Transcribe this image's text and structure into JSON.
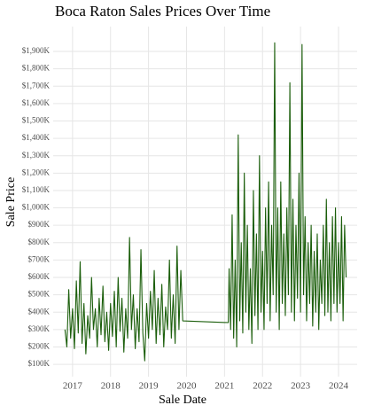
{
  "chart_data": {
    "type": "line",
    "title": "Boca Raton Sales Prices Over Time",
    "x_label": "Sale Date",
    "y_label": "Sale Price",
    "grid": true,
    "xlim": [
      2016.49,
      2024.49
    ],
    "xticks": [
      2017,
      2018,
      2019,
      2020,
      2021,
      2022,
      2023,
      2024
    ],
    "ylim": [
      29000,
      2043000
    ],
    "yticks": [
      {
        "value": 100000,
        "label": "$100K"
      },
      {
        "value": 200000,
        "label": "$200K"
      },
      {
        "value": 300000,
        "label": "$300K"
      },
      {
        "value": 400000,
        "label": "$400K"
      },
      {
        "value": 500000,
        "label": "$500K"
      },
      {
        "value": 600000,
        "label": "$600K"
      },
      {
        "value": 700000,
        "label": "$700K"
      },
      {
        "value": 800000,
        "label": "$800K"
      },
      {
        "value": 900000,
        "label": "$900K"
      },
      {
        "value": 1000000,
        "label": "$1,000K"
      },
      {
        "value": 1100000,
        "label": "$1,100K"
      },
      {
        "value": 1200000,
        "label": "$1,200K"
      },
      {
        "value": 1300000,
        "label": "$1,300K"
      },
      {
        "value": 1400000,
        "label": "$1,400K"
      },
      {
        "value": 1500000,
        "label": "$1,500K"
      },
      {
        "value": 1600000,
        "label": "$1,600K"
      },
      {
        "value": 1700000,
        "label": "$1,700K"
      },
      {
        "value": 1800000,
        "label": "$1,800K"
      },
      {
        "value": 1900000,
        "label": "$1,900K"
      }
    ],
    "series": [
      {
        "color": "#1b5e0b",
        "x": [
          2016.8,
          2016.85,
          2016.9,
          2016.95,
          2017.0,
          2017.05,
          2017.1,
          2017.15,
          2017.2,
          2017.25,
          2017.3,
          2017.35,
          2017.4,
          2017.45,
          2017.5,
          2017.55,
          2017.6,
          2017.65,
          2017.7,
          2017.75,
          2017.8,
          2017.85,
          2017.9,
          2017.95,
          2018.0,
          2018.05,
          2018.1,
          2018.15,
          2018.2,
          2018.25,
          2018.3,
          2018.35,
          2018.4,
          2018.45,
          2018.5,
          2018.55,
          2018.6,
          2018.65,
          2018.7,
          2018.75,
          2018.8,
          2018.85,
          2018.9,
          2018.95,
          2019.0,
          2019.05,
          2019.1,
          2019.15,
          2019.2,
          2019.25,
          2019.3,
          2019.35,
          2019.4,
          2019.45,
          2019.5,
          2019.55,
          2019.6,
          2019.65,
          2019.7,
          2019.75,
          2019.8,
          2019.85,
          2019.9,
          2021.1,
          2021.12,
          2021.16,
          2021.2,
          2021.24,
          2021.28,
          2021.32,
          2021.36,
          2021.4,
          2021.44,
          2021.48,
          2021.52,
          2021.56,
          2021.6,
          2021.64,
          2021.68,
          2021.72,
          2021.76,
          2021.8,
          2021.84,
          2021.88,
          2021.92,
          2021.96,
          2022.0,
          2022.04,
          2022.08,
          2022.12,
          2022.16,
          2022.2,
          2022.24,
          2022.28,
          2022.32,
          2022.36,
          2022.4,
          2022.44,
          2022.48,
          2022.52,
          2022.56,
          2022.6,
          2022.64,
          2022.68,
          2022.72,
          2022.76,
          2022.8,
          2022.84,
          2022.88,
          2022.92,
          2022.96,
          2023.0,
          2023.04,
          2023.08,
          2023.12,
          2023.16,
          2023.2,
          2023.24,
          2023.28,
          2023.32,
          2023.36,
          2023.4,
          2023.44,
          2023.48,
          2023.52,
          2023.56,
          2023.6,
          2023.64,
          2023.68,
          2023.72,
          2023.76,
          2023.8,
          2023.84,
          2023.88,
          2023.92,
          2023.96,
          2024.0,
          2024.04,
          2024.08,
          2024.12,
          2024.16,
          2024.2
        ],
        "values": [
          300000,
          200000,
          530000,
          250000,
          420000,
          190000,
          580000,
          280000,
          690000,
          220000,
          450000,
          160000,
          380000,
          250000,
          600000,
          300000,
          420000,
          200000,
          480000,
          270000,
          550000,
          230000,
          400000,
          180000,
          450000,
          260000,
          520000,
          200000,
          600000,
          290000,
          480000,
          170000,
          420000,
          250000,
          830000,
          300000,
          500000,
          190000,
          420000,
          230000,
          760000,
          280000,
          120000,
          450000,
          250000,
          520000,
          300000,
          640000,
          220000,
          480000,
          270000,
          560000,
          200000,
          430000,
          300000,
          700000,
          250000,
          500000,
          220000,
          780000,
          300000,
          640000,
          350000,
          340000,
          650000,
          300000,
          960000,
          250000,
          700000,
          200000,
          1420000,
          350000,
          800000,
          280000,
          1200000,
          400000,
          900000,
          300000,
          650000,
          220000,
          1100000,
          380000,
          850000,
          300000,
          1300000,
          400000,
          750000,
          300000,
          1000000,
          450000,
          1150000,
          350000,
          900000,
          500000,
          1950000,
          400000,
          1000000,
          300000,
          1150000,
          450000,
          850000,
          380000,
          1000000,
          500000,
          1720000,
          400000,
          1050000,
          350000,
          900000,
          480000,
          1200000,
          400000,
          1940000,
          500000,
          950000,
          350000,
          800000,
          450000,
          900000,
          320000,
          750000,
          400000,
          850000,
          300000,
          700000,
          450000,
          900000,
          380000,
          1050000,
          400000,
          800000,
          350000,
          950000,
          450000,
          1000000,
          400000,
          800000,
          450000,
          950000,
          350000,
          900000,
          600000
        ]
      }
    ]
  }
}
